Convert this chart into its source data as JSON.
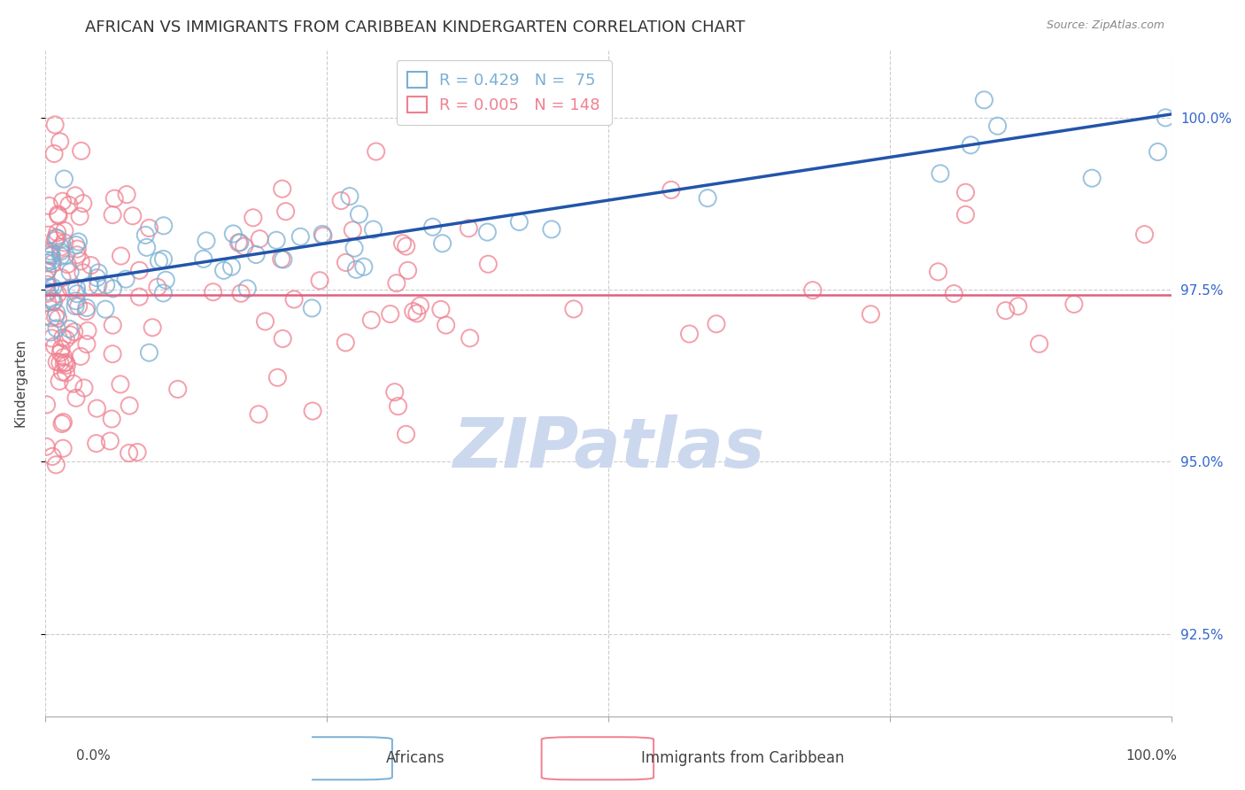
{
  "title": "AFRICAN VS IMMIGRANTS FROM CARIBBEAN KINDERGARTEN CORRELATION CHART",
  "source": "Source: ZipAtlas.com",
  "ylabel": "Kindergarten",
  "yticks": [
    92.5,
    95.0,
    97.5,
    100.0
  ],
  "ytick_labels": [
    "92.5%",
    "95.0%",
    "97.5%",
    "100.0%"
  ],
  "xlim": [
    0.0,
    100.0
  ],
  "ylim": [
    91.3,
    101.0
  ],
  "blue_trendline_y0": 97.55,
  "blue_trendline_y1": 100.05,
  "pink_hline_y": 97.42,
  "blue_scatter_color": "#7aafd4",
  "pink_scatter_color": "#f08090",
  "blue_line_color": "#2255aa",
  "pink_line_color": "#e06080",
  "watermark_color": "#ccd8ee",
  "background_color": "#ffffff",
  "grid_color": "#cccccc",
  "title_fontsize": 13,
  "axis_label_fontsize": 11,
  "tick_fontsize": 11,
  "legend_fontsize": 13,
  "right_tick_color": "#3366cc",
  "legend_blue_label": "R = 0.429   N =  75",
  "legend_pink_label": "R = 0.005   N = 148",
  "bottom_legend_africans": "Africans",
  "bottom_legend_caribbean": "Immigrants from Caribbean"
}
